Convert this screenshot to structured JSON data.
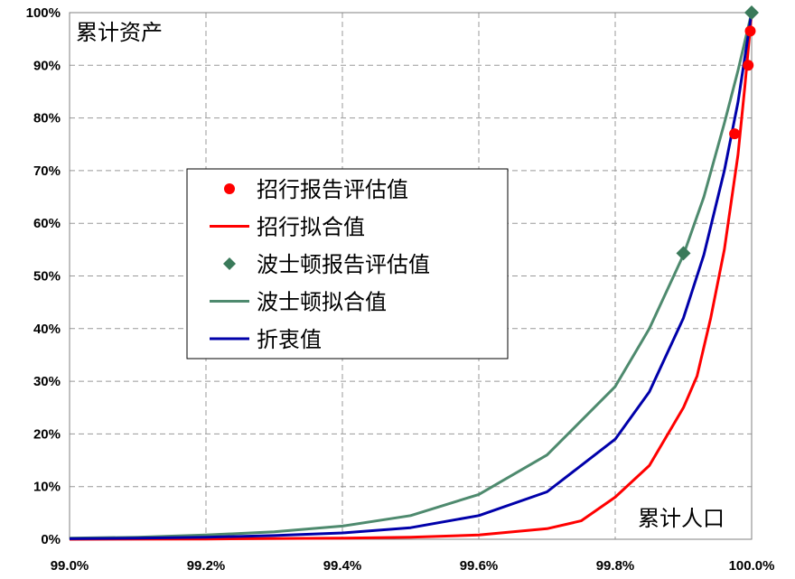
{
  "chart_data": {
    "type": "line",
    "title": "",
    "xlabel": "累计人口",
    "ylabel": "累计资产",
    "xlim": [
      0.99,
      1.0
    ],
    "ylim": [
      0,
      1.0
    ],
    "grid": true,
    "legend_position": "center-left",
    "x_ticks": [
      "99.0%",
      "99.2%",
      "99.4%",
      "99.6%",
      "99.8%",
      "100.0%"
    ],
    "x_tick_values": [
      0.99,
      0.992,
      0.994,
      0.996,
      0.998,
      1.0
    ],
    "y_ticks": [
      "0%",
      "10%",
      "20%",
      "30%",
      "40%",
      "50%",
      "60%",
      "70%",
      "80%",
      "90%",
      "100%"
    ],
    "y_tick_values": [
      0,
      0.1,
      0.2,
      0.3,
      0.4,
      0.5,
      0.6,
      0.7,
      0.8,
      0.9,
      1.0
    ],
    "series": [
      {
        "name": "招行报告评估值",
        "kind": "markers",
        "marker": "circle",
        "color": "#ff0000",
        "x": [
          0.99975,
          0.99995,
          0.99998
        ],
        "y": [
          0.77,
          0.9,
          0.965
        ]
      },
      {
        "name": "招行拟合值",
        "kind": "line",
        "color": "#ff0000",
        "x": [
          0.99,
          0.992,
          0.994,
          0.995,
          0.996,
          0.997,
          0.9975,
          0.998,
          0.9985,
          0.999,
          0.9992,
          0.9994,
          0.9996,
          0.9998,
          0.9999,
          1.0
        ],
        "y": [
          0.0,
          0.0005,
          0.002,
          0.004,
          0.008,
          0.02,
          0.035,
          0.08,
          0.14,
          0.25,
          0.31,
          0.42,
          0.55,
          0.73,
          0.86,
          1.0
        ]
      },
      {
        "name": "波士顿报告评估值",
        "kind": "markers",
        "marker": "diamond",
        "color": "#3a7a5a",
        "x": [
          0.999,
          1.0
        ],
        "y": [
          0.543,
          1.0
        ]
      },
      {
        "name": "波士顿拟合值",
        "kind": "line",
        "color": "#4e8a6e",
        "x": [
          0.99,
          0.991,
          0.992,
          0.993,
          0.994,
          0.995,
          0.996,
          0.997,
          0.998,
          0.9985,
          0.999,
          0.9993,
          0.9996,
          0.9998,
          1.0
        ],
        "y": [
          0.002,
          0.004,
          0.008,
          0.014,
          0.025,
          0.045,
          0.085,
          0.16,
          0.29,
          0.4,
          0.54,
          0.65,
          0.79,
          0.89,
          1.0
        ]
      },
      {
        "name": "折衷值",
        "kind": "line",
        "color": "#0000aa",
        "x": [
          0.99,
          0.991,
          0.992,
          0.993,
          0.994,
          0.995,
          0.996,
          0.997,
          0.998,
          0.9985,
          0.999,
          0.9993,
          0.9996,
          0.9998,
          1.0
        ],
        "y": [
          0.001,
          0.002,
          0.004,
          0.007,
          0.012,
          0.022,
          0.045,
          0.09,
          0.19,
          0.28,
          0.42,
          0.54,
          0.7,
          0.83,
          1.0
        ]
      }
    ]
  }
}
